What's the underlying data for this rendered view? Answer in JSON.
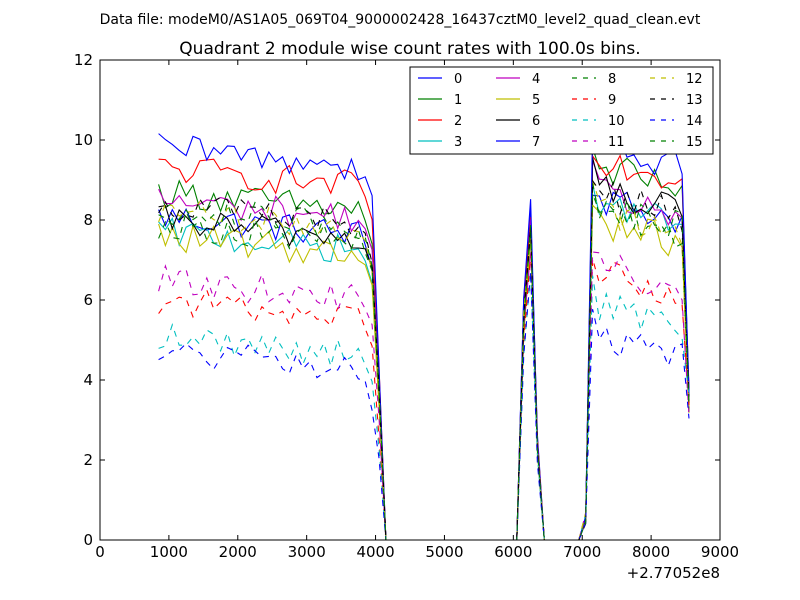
{
  "figure": {
    "suptitle": "Data file: modeM0/AS1A05_069T04_9000002428_16437cztM0_level2_quad_clean.evt"
  },
  "chart_data": {
    "type": "line",
    "title": "Quadrant 2 module wise count rates with 100.0s bins.",
    "xlabel": "",
    "ylabel": "",
    "x_offset_label": "+2.77052e8",
    "xlim": [
      0,
      9000
    ],
    "ylim": [
      0,
      12
    ],
    "xticks": [
      "0",
      "1000",
      "2000",
      "3000",
      "4000",
      "5000",
      "6000",
      "7000",
      "8000",
      "9000"
    ],
    "yticks": [
      "0",
      "2",
      "4",
      "6",
      "8",
      "10",
      "12"
    ],
    "grid": false,
    "legend_location": "upper right",
    "legend_columns": 4,
    "x": [
      850,
      950,
      1050,
      1150,
      1250,
      1350,
      1450,
      1550,
      1650,
      1750,
      1850,
      1950,
      2050,
      2150,
      2250,
      2350,
      2450,
      2550,
      2650,
      2750,
      2850,
      2950,
      3050,
      3150,
      3250,
      3350,
      3450,
      3550,
      3650,
      3750,
      3850,
      3950,
      4050,
      4150,
      4250,
      4350,
      4450,
      4550,
      4650,
      4750,
      4850,
      4950,
      5050,
      5150,
      5250,
      5350,
      5450,
      5550,
      5650,
      5750,
      5850,
      5950,
      6050,
      6150,
      6250,
      6350,
      6450,
      6550,
      6650,
      6750,
      6850,
      6950,
      7050,
      7150,
      7250,
      7350,
      7450,
      7550,
      7650,
      7750,
      7850,
      7950,
      8050,
      8150,
      8250,
      8350,
      8450,
      8550
    ],
    "series": [
      {
        "name": "0",
        "color": "#0000ff",
        "dash": "solid",
        "base": 8.1,
        "peak": 8.3,
        "late": 8.6
      },
      {
        "name": "1",
        "color": "#008000",
        "dash": "solid",
        "base": 8.7,
        "peak": 8.0,
        "late": 9.4
      },
      {
        "name": "2",
        "color": "#ff0000",
        "dash": "solid",
        "base": 9.3,
        "peak": 8.2,
        "late": 9.6
      },
      {
        "name": "3",
        "color": "#00bfbf",
        "dash": "solid",
        "base": 7.7,
        "peak": 7.6,
        "late": 8.5
      },
      {
        "name": "4",
        "color": "#bf00bf",
        "dash": "solid",
        "base": 8.5,
        "peak": 7.9,
        "late": 8.7
      },
      {
        "name": "5",
        "color": "#bfbf00",
        "dash": "solid",
        "base": 7.6,
        "peak": 7.5,
        "late": 8.0
      },
      {
        "name": "6",
        "color": "#000000",
        "dash": "solid",
        "base": 8.0,
        "peak": 7.8,
        "late": 8.8
      },
      {
        "name": "7",
        "color": "#0000ff",
        "dash": "solid",
        "base": 9.8,
        "peak": 8.5,
        "late": 9.9
      },
      {
        "name": "8",
        "color": "#008000",
        "dash": "dashed",
        "base": 7.9,
        "peak": 7.7,
        "late": 8.2
      },
      {
        "name": "9",
        "color": "#ff0000",
        "dash": "dashed",
        "base": 6.0,
        "peak": 7.2,
        "late": 6.7
      },
      {
        "name": "10",
        "color": "#00bfbf",
        "dash": "dashed",
        "base": 5.1,
        "peak": 6.8,
        "late": 5.9
      },
      {
        "name": "11",
        "color": "#bf00bf",
        "dash": "dashed",
        "base": 6.5,
        "peak": 7.3,
        "late": 6.9
      },
      {
        "name": "12",
        "color": "#bfbf00",
        "dash": "dashed",
        "base": 8.2,
        "peak": 7.9,
        "late": 8.3
      },
      {
        "name": "13",
        "color": "#000000",
        "dash": "dashed",
        "base": 8.4,
        "peak": 7.7,
        "late": 8.7
      },
      {
        "name": "14",
        "color": "#0000ff",
        "dash": "dashed",
        "base": 4.7,
        "peak": 6.6,
        "late": 5.1
      },
      {
        "name": "15",
        "color": "#008000",
        "dash": "dashed",
        "base": 8.3,
        "peak": 7.8,
        "late": 8.4
      }
    ]
  }
}
